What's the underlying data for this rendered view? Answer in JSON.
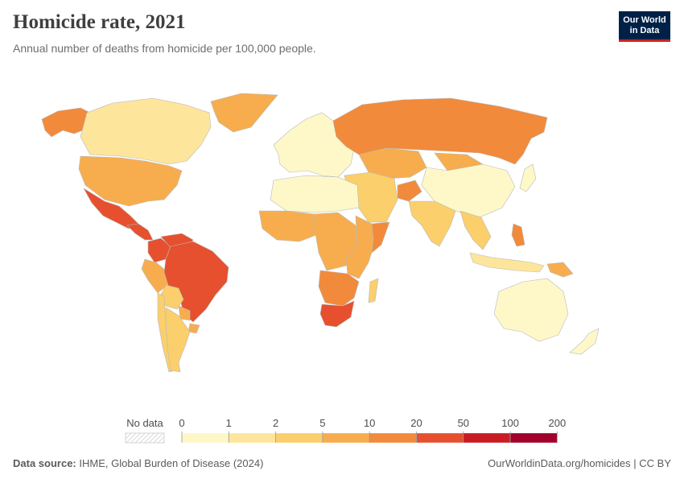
{
  "header": {
    "title": "Homicide rate, 2021",
    "subtitle": "Annual number of deaths from homicide per 100,000 people."
  },
  "logo": {
    "line1": "Our World",
    "line2": "in Data",
    "background": "#002147",
    "accent": "#ce261e"
  },
  "legend": {
    "no_data_label": "No data",
    "ticks": [
      "0",
      "1",
      "2",
      "5",
      "10",
      "20",
      "50",
      "100",
      "200"
    ],
    "bins": [
      {
        "range": "0-1",
        "color": "#fef8c9"
      },
      {
        "range": "1-2",
        "color": "#fde59c"
      },
      {
        "range": "2-5",
        "color": "#fbcf6c"
      },
      {
        "range": "5-10",
        "color": "#f7ad4e"
      },
      {
        "range": "10-20",
        "color": "#f28a3b"
      },
      {
        "range": "20-50",
        "color": "#e6502f"
      },
      {
        "range": "50-100",
        "color": "#c91c22"
      },
      {
        "range": "100-200",
        "color": "#a0022b"
      }
    ]
  },
  "regions": [
    {
      "name": "Canada",
      "bin": 1
    },
    {
      "name": "Alaska",
      "bin": 4
    },
    {
      "name": "Greenland",
      "bin": 3
    },
    {
      "name": "United States",
      "bin": 3
    },
    {
      "name": "Mexico",
      "bin": 5
    },
    {
      "name": "Central America",
      "bin": 5
    },
    {
      "name": "Venezuela",
      "bin": 5
    },
    {
      "name": "Colombia",
      "bin": 5
    },
    {
      "name": "Brazil",
      "bin": 5
    },
    {
      "name": "Peru",
      "bin": 3
    },
    {
      "name": "Bolivia",
      "bin": 2
    },
    {
      "name": "Paraguay",
      "bin": 3
    },
    {
      "name": "Uruguay",
      "bin": 3
    },
    {
      "name": "Argentina",
      "bin": 2
    },
    {
      "name": "Chile",
      "bin": 2
    },
    {
      "name": "Europe",
      "bin": 0
    },
    {
      "name": "Russia",
      "bin": 4
    },
    {
      "name": "Kazakhstan",
      "bin": 3
    },
    {
      "name": "Mongolia",
      "bin": 3
    },
    {
      "name": "China",
      "bin": 0
    },
    {
      "name": "Middle East",
      "bin": 2
    },
    {
      "name": "Afghanistan",
      "bin": 4
    },
    {
      "name": "India",
      "bin": 2
    },
    {
      "name": "Southeast Asia",
      "bin": 2
    },
    {
      "name": "Philippines",
      "bin": 4
    },
    {
      "name": "Indonesia",
      "bin": 1
    },
    {
      "name": "Papua New Guinea",
      "bin": 3
    },
    {
      "name": "Japan",
      "bin": 0
    },
    {
      "name": "North Africa",
      "bin": 0
    },
    {
      "name": "West Africa",
      "bin": 3
    },
    {
      "name": "Central Africa",
      "bin": 3
    },
    {
      "name": "East Africa",
      "bin": 3
    },
    {
      "name": "Somalia",
      "bin": 4
    },
    {
      "name": "Southern Africa",
      "bin": 4
    },
    {
      "name": "South Africa",
      "bin": 5
    },
    {
      "name": "Madagascar",
      "bin": 2
    },
    {
      "name": "Australia",
      "bin": 0
    },
    {
      "name": "New Zealand",
      "bin": 0
    }
  ],
  "footer": {
    "source_label": "Data source:",
    "source_text": " IHME, Global Burden of Disease (2024)",
    "url_license": "OurWorldinData.org/homicides | CC BY"
  }
}
